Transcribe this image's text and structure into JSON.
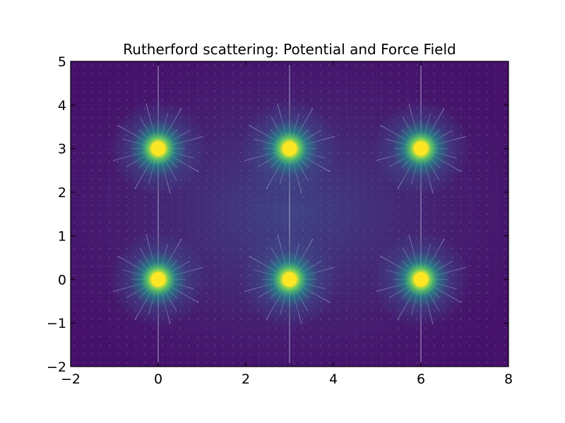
{
  "chart_data": {
    "type": "heatmap",
    "title": "Rutherford scattering: Potential and Force Field",
    "xlabel": "",
    "ylabel": "",
    "xlim": [
      -2,
      8
    ],
    "ylim": [
      -2,
      5
    ],
    "xticks": [
      -2,
      0,
      2,
      4,
      6,
      8
    ],
    "yticks": [
      -2,
      -1,
      0,
      1,
      2,
      3,
      4,
      5
    ],
    "xtick_labels": [
      "−2",
      "0",
      "2",
      "4",
      "6",
      "8"
    ],
    "ytick_labels": [
      "−2",
      "−1",
      "0",
      "1",
      "2",
      "3",
      "4",
      "5"
    ],
    "grid": false,
    "colormap": "viridis",
    "nuclei": [
      {
        "x": 0,
        "y": 0
      },
      {
        "x": 3,
        "y": 0
      },
      {
        "x": 6,
        "y": 0
      },
      {
        "x": 0,
        "y": 3
      },
      {
        "x": 3,
        "y": 3
      },
      {
        "x": 6,
        "y": 3
      }
    ],
    "overlay": "force-field-quiver",
    "colors": {
      "background_low": "#440154",
      "background_mid": "#3b528b",
      "glow": "#21918c",
      "nucleus": "#fde725",
      "arrows": "#c8c8dc"
    }
  }
}
